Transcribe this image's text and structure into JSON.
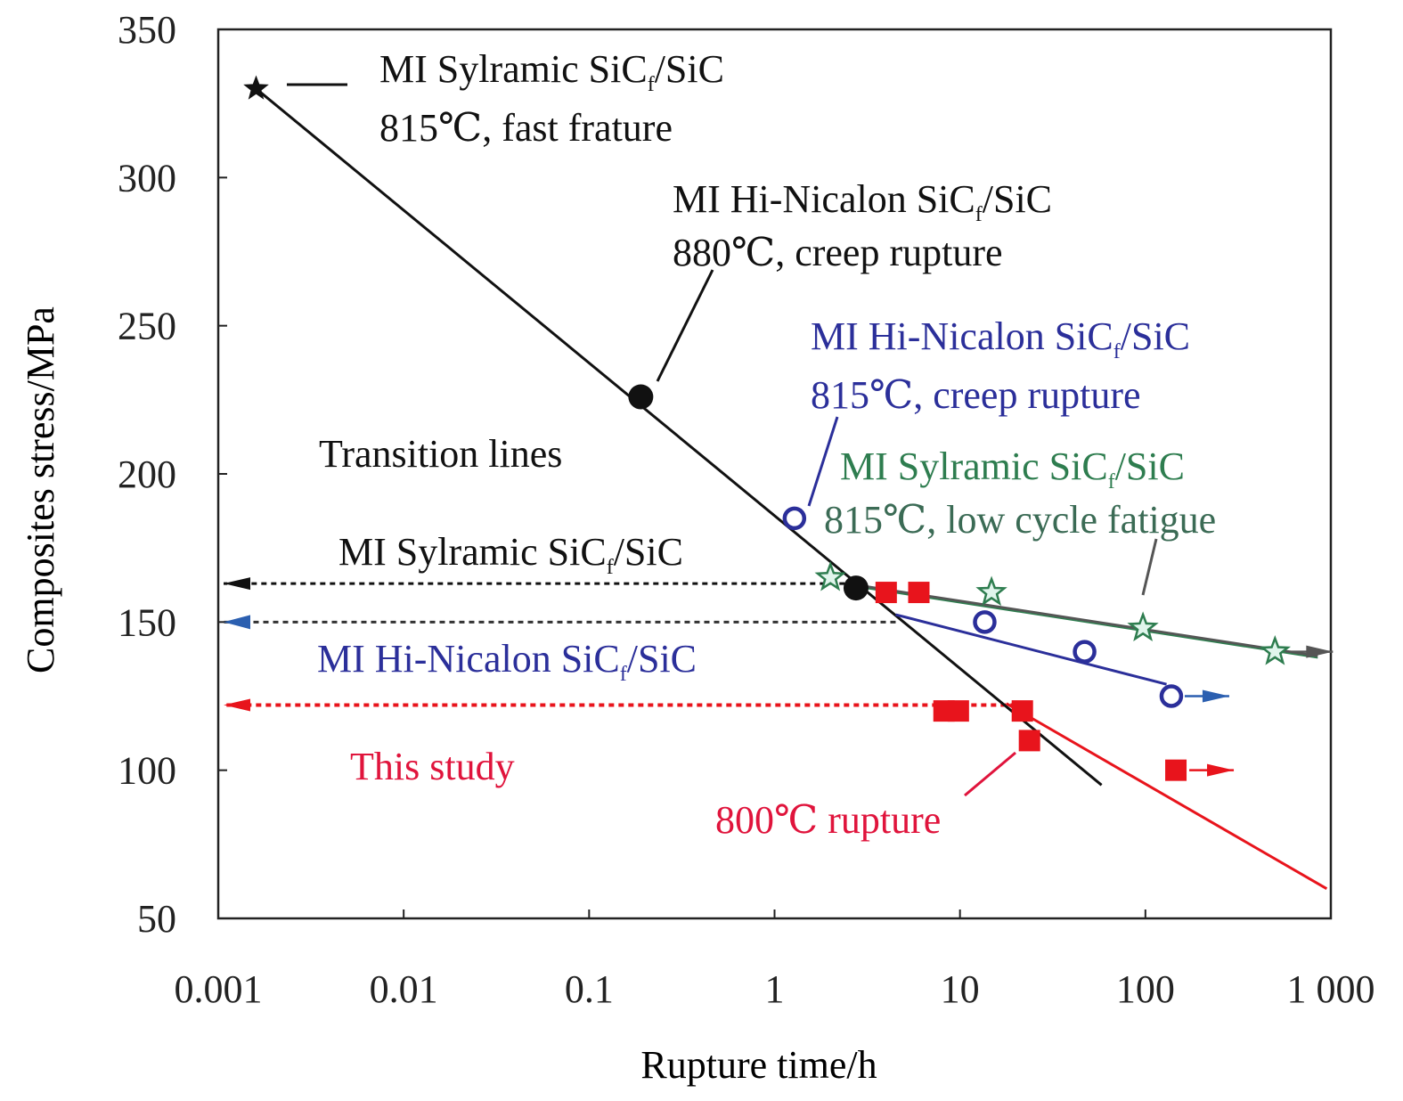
{
  "chart_data": {
    "type": "scatter",
    "xscale": "log",
    "xlabel": "Rupture time/h",
    "ylabel": "Composites stress/MPa",
    "xlim": [
      0.001,
      1000
    ],
    "ylim": [
      50,
      350
    ],
    "xticks": [
      "0.001",
      "0.01",
      "0.1",
      "1",
      "10",
      "100",
      "1 000"
    ],
    "xtick_values": [
      0.001,
      0.01,
      0.1,
      1,
      10,
      100,
      1000
    ],
    "yticks": [
      50,
      100,
      150,
      200,
      250,
      300,
      350
    ],
    "colors": {
      "black": "#111111",
      "blue": "#2b2f9a",
      "green": "#2e7d4f",
      "gray": "#555555",
      "red": "#e8141c"
    },
    "series": [
      {
        "name": "MI Sylramic SiCf/SiC 815℃, fast frature",
        "marker": "star-filled",
        "color": "#111111",
        "points": [
          [
            0.0016,
            330
          ]
        ]
      },
      {
        "name": "MI Hi-Nicalon SiCf/SiC 880℃, creep rupture",
        "marker": "circle-filled",
        "color": "#111111",
        "points": [
          [
            0.19,
            226
          ],
          [
            2.75,
            161.5
          ]
        ]
      },
      {
        "name": "MI Hi-Nicalon SiCf/SiC 815℃, creep rupture",
        "marker": "circle-open",
        "color": "#2b2f9a",
        "points": [
          [
            1.28,
            185
          ],
          [
            13.6,
            150
          ],
          [
            47,
            140
          ],
          [
            138,
            125
          ]
        ],
        "runout_last": true
      },
      {
        "name": "MI Sylramic SiCf/SiC 815℃, low cycle fatigue",
        "marker": "star-open",
        "color": "#2e7d4f",
        "points": [
          [
            2.0,
            165
          ],
          [
            14.8,
            160
          ],
          [
            97,
            148
          ],
          [
            500,
            140
          ]
        ],
        "runout_last": true
      },
      {
        "name": "This study 800℃ rupture",
        "marker": "square-filled",
        "color": "#e8141c",
        "points": [
          [
            4,
            160
          ],
          [
            6,
            160
          ],
          [
            8.2,
            120
          ],
          [
            9.8,
            120
          ],
          [
            21.7,
            120
          ],
          [
            23.7,
            110
          ],
          [
            146,
            100
          ]
        ],
        "runout_last": true
      }
    ],
    "lines": [
      {
        "name": "transition-line-black",
        "color": "#111111",
        "points": [
          [
            0.0016,
            330
          ],
          [
            58,
            95
          ]
        ]
      },
      {
        "name": "fit-line-blue",
        "color": "#2b2f9a",
        "points": [
          [
            4.5,
            152.5
          ],
          [
            130,
            129
          ]
        ]
      },
      {
        "name": "fit-line-green",
        "color": "#2e7d4f",
        "points": [
          [
            2.75,
            162.5
          ],
          [
            850,
            138.5
          ]
        ]
      },
      {
        "name": "fit-line-red",
        "color": "#e8141c",
        "points": [
          [
            17.8,
            122.5
          ],
          [
            950,
            60
          ]
        ]
      }
    ],
    "transition_lines": [
      {
        "label": "MI Sylramic SiCf/SiC",
        "stress": 163,
        "to_time": 2.7,
        "color": "#111111"
      },
      {
        "label": "MI Hi-Nicalon SiCf/SiC",
        "stress": 150,
        "to_time": 4.5,
        "color": "#2b2f9a"
      },
      {
        "label": "This study",
        "stress": 122,
        "to_time": 20,
        "color": "#e8141c"
      }
    ],
    "annotations": {
      "fast_fracture_1": "MI Sylramic SiC",
      "fast_fracture_sub": "f",
      "fast_fracture_2": "/SiC",
      "fast_fracture_3": "815℃, fast frature",
      "hn880_1": "MI Hi-Nicalon SiC",
      "hn880_sub": "f",
      "hn880_2": "/SiC",
      "hn880_3": "880℃, creep rupture",
      "hn815_1": "MI Hi-Nicalon SiC",
      "hn815_sub": "f",
      "hn815_2": "/SiC",
      "hn815_3": "815℃, creep rupture",
      "syl_lcf_1": "MI Sylramic SiC",
      "syl_lcf_sub": "f",
      "syl_lcf_2": "/SiC",
      "syl_lcf_3": "815℃, low cycle fatigue",
      "transition": "Transition lines",
      "tl_syl_1": "MI Sylramic SiC",
      "tl_syl_sub": "f",
      "tl_syl_2": "/SiC",
      "tl_hn_1": "MI Hi-Nicalon SiC",
      "tl_hn_sub": "f",
      "tl_hn_2": "/SiC",
      "this_study": "This study",
      "rupture_800": "800℃ rupture"
    }
  }
}
